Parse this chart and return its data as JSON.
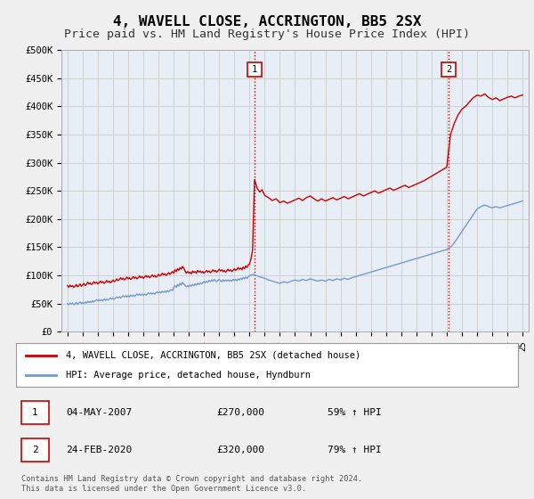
{
  "title": "4, WAVELL CLOSE, ACCRINGTON, BB5 2SX",
  "subtitle": "Price paid vs. HM Land Registry's House Price Index (HPI)",
  "title_fontsize": 11.5,
  "subtitle_fontsize": 9.5,
  "ylim": [
    0,
    500000
  ],
  "yticks": [
    0,
    50000,
    100000,
    150000,
    200000,
    250000,
    300000,
    350000,
    400000,
    450000,
    500000
  ],
  "ytick_labels": [
    "£0",
    "£50K",
    "£100K",
    "£150K",
    "£200K",
    "£250K",
    "£300K",
    "£350K",
    "£400K",
    "£450K",
    "£500K"
  ],
  "xlim_start": 1994.6,
  "xlim_end": 2025.4,
  "background_color": "#f0f0f0",
  "plot_background": "#e8eef5",
  "grid_color": "#cccccc",
  "red_line_color": "#cc0000",
  "blue_line_color": "#7799cc",
  "vline_color": "#cc0000",
  "vline1_x": 2007.35,
  "vline2_x": 2020.12,
  "marker1_label": "1",
  "marker2_label": "2",
  "marker1_y": 470000,
  "marker2_y": 470000,
  "transaction1": [
    "1",
    "04-MAY-2007",
    "£270,000",
    "59% ↑ HPI"
  ],
  "transaction2": [
    "2",
    "24-FEB-2020",
    "£320,000",
    "79% ↑ HPI"
  ],
  "legend_line1": "4, WAVELL CLOSE, ACCRINGTON, BB5 2SX (detached house)",
  "legend_line2": "HPI: Average price, detached house, Hyndburn",
  "copyright": "Contains HM Land Registry data © Crown copyright and database right 2024.\nThis data is licensed under the Open Government Licence v3.0.",
  "red_hpi_data": [
    [
      1995.0,
      82000
    ],
    [
      1995.08,
      79000
    ],
    [
      1995.17,
      83000
    ],
    [
      1995.25,
      80000
    ],
    [
      1995.33,
      82000
    ],
    [
      1995.42,
      79000
    ],
    [
      1995.5,
      81000
    ],
    [
      1995.58,
      84000
    ],
    [
      1995.67,
      80000
    ],
    [
      1995.75,
      82000
    ],
    [
      1995.83,
      85000
    ],
    [
      1995.92,
      81000
    ],
    [
      1996.0,
      83000
    ],
    [
      1996.08,
      86000
    ],
    [
      1996.17,
      82000
    ],
    [
      1996.25,
      84000
    ],
    [
      1996.33,
      88000
    ],
    [
      1996.42,
      85000
    ],
    [
      1996.5,
      87000
    ],
    [
      1996.58,
      84000
    ],
    [
      1996.67,
      86000
    ],
    [
      1996.75,
      89000
    ],
    [
      1996.83,
      86000
    ],
    [
      1996.92,
      88000
    ],
    [
      1997.0,
      85000
    ],
    [
      1997.08,
      87000
    ],
    [
      1997.17,
      90000
    ],
    [
      1997.25,
      87000
    ],
    [
      1997.33,
      89000
    ],
    [
      1997.42,
      86000
    ],
    [
      1997.5,
      88000
    ],
    [
      1997.58,
      91000
    ],
    [
      1997.67,
      88000
    ],
    [
      1997.75,
      90000
    ],
    [
      1997.83,
      87000
    ],
    [
      1997.92,
      89000
    ],
    [
      1998.0,
      92000
    ],
    [
      1998.08,
      89000
    ],
    [
      1998.17,
      91000
    ],
    [
      1998.25,
      94000
    ],
    [
      1998.33,
      91000
    ],
    [
      1998.42,
      93000
    ],
    [
      1998.5,
      96000
    ],
    [
      1998.58,
      93000
    ],
    [
      1998.67,
      95000
    ],
    [
      1998.75,
      92000
    ],
    [
      1998.83,
      94000
    ],
    [
      1998.92,
      97000
    ],
    [
      1999.0,
      94000
    ],
    [
      1999.08,
      96000
    ],
    [
      1999.17,
      93000
    ],
    [
      1999.25,
      95000
    ],
    [
      1999.33,
      98000
    ],
    [
      1999.42,
      95000
    ],
    [
      1999.5,
      97000
    ],
    [
      1999.58,
      94000
    ],
    [
      1999.67,
      96000
    ],
    [
      1999.75,
      99000
    ],
    [
      1999.83,
      96000
    ],
    [
      1999.92,
      98000
    ],
    [
      2000.0,
      95000
    ],
    [
      2000.08,
      97000
    ],
    [
      2000.17,
      100000
    ],
    [
      2000.25,
      97000
    ],
    [
      2000.33,
      99000
    ],
    [
      2000.42,
      96000
    ],
    [
      2000.5,
      98000
    ],
    [
      2000.58,
      101000
    ],
    [
      2000.67,
      98000
    ],
    [
      2000.75,
      100000
    ],
    [
      2000.83,
      97000
    ],
    [
      2000.92,
      99000
    ],
    [
      2001.0,
      102000
    ],
    [
      2001.08,
      99000
    ],
    [
      2001.17,
      101000
    ],
    [
      2001.25,
      104000
    ],
    [
      2001.33,
      101000
    ],
    [
      2001.42,
      103000
    ],
    [
      2001.5,
      100000
    ],
    [
      2001.58,
      102000
    ],
    [
      2001.67,
      105000
    ],
    [
      2001.75,
      102000
    ],
    [
      2001.83,
      104000
    ],
    [
      2001.92,
      107000
    ],
    [
      2002.0,
      104000
    ],
    [
      2002.08,
      110000
    ],
    [
      2002.17,
      107000
    ],
    [
      2002.25,
      112000
    ],
    [
      2002.33,
      109000
    ],
    [
      2002.42,
      114000
    ],
    [
      2002.5,
      111000
    ],
    [
      2002.58,
      116000
    ],
    [
      2002.67,
      113000
    ],
    [
      2002.75,
      108000
    ],
    [
      2002.83,
      104000
    ],
    [
      2002.92,
      107000
    ],
    [
      2003.0,
      104000
    ],
    [
      2003.08,
      106000
    ],
    [
      2003.17,
      103000
    ],
    [
      2003.25,
      108000
    ],
    [
      2003.33,
      105000
    ],
    [
      2003.42,
      107000
    ],
    [
      2003.5,
      104000
    ],
    [
      2003.58,
      109000
    ],
    [
      2003.67,
      106000
    ],
    [
      2003.75,
      108000
    ],
    [
      2003.83,
      105000
    ],
    [
      2003.92,
      107000
    ],
    [
      2004.0,
      104000
    ],
    [
      2004.08,
      106000
    ],
    [
      2004.17,
      109000
    ],
    [
      2004.25,
      106000
    ],
    [
      2004.33,
      108000
    ],
    [
      2004.42,
      105000
    ],
    [
      2004.5,
      107000
    ],
    [
      2004.58,
      110000
    ],
    [
      2004.67,
      107000
    ],
    [
      2004.75,
      109000
    ],
    [
      2004.83,
      106000
    ],
    [
      2004.92,
      108000
    ],
    [
      2005.0,
      111000
    ],
    [
      2005.08,
      108000
    ],
    [
      2005.17,
      110000
    ],
    [
      2005.25,
      107000
    ],
    [
      2005.33,
      109000
    ],
    [
      2005.42,
      106000
    ],
    [
      2005.5,
      108000
    ],
    [
      2005.58,
      111000
    ],
    [
      2005.67,
      108000
    ],
    [
      2005.75,
      110000
    ],
    [
      2005.83,
      107000
    ],
    [
      2005.92,
      109000
    ],
    [
      2006.0,
      112000
    ],
    [
      2006.08,
      109000
    ],
    [
      2006.17,
      111000
    ],
    [
      2006.25,
      114000
    ],
    [
      2006.33,
      111000
    ],
    [
      2006.42,
      113000
    ],
    [
      2006.5,
      110000
    ],
    [
      2006.58,
      115000
    ],
    [
      2006.67,
      112000
    ],
    [
      2006.75,
      117000
    ],
    [
      2006.83,
      114000
    ],
    [
      2006.92,
      119000
    ],
    [
      2007.0,
      120000
    ],
    [
      2007.1,
      130000
    ],
    [
      2007.2,
      145000
    ],
    [
      2007.33,
      270000
    ],
    [
      2007.5,
      255000
    ],
    [
      2007.67,
      248000
    ],
    [
      2007.83,
      252000
    ],
    [
      2008.0,
      242000
    ],
    [
      2008.25,
      238000
    ],
    [
      2008.5,
      233000
    ],
    [
      2008.75,
      236000
    ],
    [
      2009.0,
      229000
    ],
    [
      2009.25,
      232000
    ],
    [
      2009.5,
      228000
    ],
    [
      2009.75,
      231000
    ],
    [
      2010.0,
      234000
    ],
    [
      2010.25,
      237000
    ],
    [
      2010.5,
      233000
    ],
    [
      2010.75,
      238000
    ],
    [
      2011.0,
      241000
    ],
    [
      2011.25,
      236000
    ],
    [
      2011.5,
      232000
    ],
    [
      2011.75,
      236000
    ],
    [
      2012.0,
      232000
    ],
    [
      2012.25,
      235000
    ],
    [
      2012.5,
      238000
    ],
    [
      2012.75,
      234000
    ],
    [
      2013.0,
      237000
    ],
    [
      2013.25,
      240000
    ],
    [
      2013.5,
      236000
    ],
    [
      2013.75,
      239000
    ],
    [
      2014.0,
      242000
    ],
    [
      2014.25,
      245000
    ],
    [
      2014.5,
      241000
    ],
    [
      2014.75,
      244000
    ],
    [
      2015.0,
      247000
    ],
    [
      2015.25,
      250000
    ],
    [
      2015.5,
      246000
    ],
    [
      2015.75,
      249000
    ],
    [
      2016.0,
      252000
    ],
    [
      2016.25,
      255000
    ],
    [
      2016.5,
      251000
    ],
    [
      2016.75,
      254000
    ],
    [
      2017.0,
      257000
    ],
    [
      2017.25,
      260000
    ],
    [
      2017.5,
      256000
    ],
    [
      2017.75,
      259000
    ],
    [
      2018.0,
      262000
    ],
    [
      2018.25,
      265000
    ],
    [
      2018.5,
      268000
    ],
    [
      2018.75,
      272000
    ],
    [
      2019.0,
      276000
    ],
    [
      2019.25,
      280000
    ],
    [
      2019.5,
      284000
    ],
    [
      2019.75,
      288000
    ],
    [
      2020.0,
      292000
    ],
    [
      2020.12,
      320000
    ],
    [
      2020.25,
      350000
    ],
    [
      2020.5,
      370000
    ],
    [
      2020.75,
      385000
    ],
    [
      2021.0,
      395000
    ],
    [
      2021.25,
      400000
    ],
    [
      2021.5,
      408000
    ],
    [
      2021.75,
      415000
    ],
    [
      2022.0,
      420000
    ],
    [
      2022.25,
      418000
    ],
    [
      2022.5,
      422000
    ],
    [
      2022.75,
      416000
    ],
    [
      2023.0,
      412000
    ],
    [
      2023.25,
      415000
    ],
    [
      2023.5,
      410000
    ],
    [
      2023.75,
      413000
    ],
    [
      2024.0,
      416000
    ],
    [
      2024.25,
      418000
    ],
    [
      2024.5,
      415000
    ],
    [
      2024.75,
      418000
    ],
    [
      2025.0,
      420000
    ]
  ],
  "blue_hpi_data": [
    [
      1995.0,
      50000
    ],
    [
      1995.08,
      48000
    ],
    [
      1995.17,
      51000
    ],
    [
      1995.25,
      49000
    ],
    [
      1995.33,
      51000
    ],
    [
      1995.42,
      48000
    ],
    [
      1995.5,
      50000
    ],
    [
      1995.58,
      52000
    ],
    [
      1995.67,
      49000
    ],
    [
      1995.75,
      51000
    ],
    [
      1995.83,
      53000
    ],
    [
      1995.92,
      50000
    ],
    [
      1996.0,
      52000
    ],
    [
      1996.08,
      50000
    ],
    [
      1996.17,
      53000
    ],
    [
      1996.25,
      51000
    ],
    [
      1996.33,
      54000
    ],
    [
      1996.42,
      52000
    ],
    [
      1996.5,
      54000
    ],
    [
      1996.58,
      52000
    ],
    [
      1996.67,
      55000
    ],
    [
      1996.75,
      53000
    ],
    [
      1996.83,
      55000
    ],
    [
      1996.92,
      57000
    ],
    [
      1997.0,
      55000
    ],
    [
      1997.08,
      57000
    ],
    [
      1997.17,
      55000
    ],
    [
      1997.25,
      57000
    ],
    [
      1997.33,
      55000
    ],
    [
      1997.42,
      58000
    ],
    [
      1997.5,
      56000
    ],
    [
      1997.58,
      58000
    ],
    [
      1997.67,
      56000
    ],
    [
      1997.75,
      58000
    ],
    [
      1997.83,
      60000
    ],
    [
      1997.92,
      58000
    ],
    [
      1998.0,
      60000
    ],
    [
      1998.08,
      58000
    ],
    [
      1998.17,
      60000
    ],
    [
      1998.25,
      62000
    ],
    [
      1998.33,
      60000
    ],
    [
      1998.42,
      62000
    ],
    [
      1998.5,
      60000
    ],
    [
      1998.58,
      62000
    ],
    [
      1998.67,
      64000
    ],
    [
      1998.75,
      62000
    ],
    [
      1998.83,
      64000
    ],
    [
      1998.92,
      62000
    ],
    [
      1999.0,
      64000
    ],
    [
      1999.08,
      62000
    ],
    [
      1999.17,
      65000
    ],
    [
      1999.25,
      63000
    ],
    [
      1999.33,
      65000
    ],
    [
      1999.42,
      63000
    ],
    [
      1999.5,
      65000
    ],
    [
      1999.58,
      67000
    ],
    [
      1999.67,
      65000
    ],
    [
      1999.75,
      67000
    ],
    [
      1999.83,
      65000
    ],
    [
      1999.92,
      67000
    ],
    [
      2000.0,
      65000
    ],
    [
      2000.08,
      67000
    ],
    [
      2000.17,
      65000
    ],
    [
      2000.25,
      67000
    ],
    [
      2000.33,
      69000
    ],
    [
      2000.42,
      67000
    ],
    [
      2000.5,
      69000
    ],
    [
      2000.58,
      67000
    ],
    [
      2000.67,
      69000
    ],
    [
      2000.75,
      67000
    ],
    [
      2000.83,
      69000
    ],
    [
      2000.92,
      71000
    ],
    [
      2001.0,
      69000
    ],
    [
      2001.08,
      71000
    ],
    [
      2001.17,
      69000
    ],
    [
      2001.25,
      72000
    ],
    [
      2001.33,
      70000
    ],
    [
      2001.42,
      72000
    ],
    [
      2001.5,
      70000
    ],
    [
      2001.58,
      73000
    ],
    [
      2001.67,
      71000
    ],
    [
      2001.75,
      73000
    ],
    [
      2001.83,
      75000
    ],
    [
      2001.92,
      73000
    ],
    [
      2002.0,
      78000
    ],
    [
      2002.08,
      82000
    ],
    [
      2002.17,
      79000
    ],
    [
      2002.25,
      84000
    ],
    [
      2002.33,
      81000
    ],
    [
      2002.42,
      86000
    ],
    [
      2002.5,
      83000
    ],
    [
      2002.58,
      88000
    ],
    [
      2002.67,
      85000
    ],
    [
      2002.75,
      82000
    ],
    [
      2002.83,
      80000
    ],
    [
      2002.92,
      82000
    ],
    [
      2003.0,
      80000
    ],
    [
      2003.08,
      83000
    ],
    [
      2003.17,
      81000
    ],
    [
      2003.25,
      84000
    ],
    [
      2003.33,
      82000
    ],
    [
      2003.42,
      85000
    ],
    [
      2003.5,
      83000
    ],
    [
      2003.58,
      86000
    ],
    [
      2003.67,
      84000
    ],
    [
      2003.75,
      87000
    ],
    [
      2003.83,
      85000
    ],
    [
      2003.92,
      87000
    ],
    [
      2004.0,
      89000
    ],
    [
      2004.08,
      87000
    ],
    [
      2004.17,
      90000
    ],
    [
      2004.25,
      88000
    ],
    [
      2004.33,
      91000
    ],
    [
      2004.42,
      89000
    ],
    [
      2004.5,
      92000
    ],
    [
      2004.58,
      90000
    ],
    [
      2004.67,
      93000
    ],
    [
      2004.75,
      91000
    ],
    [
      2004.83,
      89000
    ],
    [
      2004.92,
      91000
    ],
    [
      2005.0,
      93000
    ],
    [
      2005.08,
      91000
    ],
    [
      2005.17,
      89000
    ],
    [
      2005.25,
      92000
    ],
    [
      2005.33,
      90000
    ],
    [
      2005.42,
      92000
    ],
    [
      2005.5,
      90000
    ],
    [
      2005.58,
      92000
    ],
    [
      2005.67,
      90000
    ],
    [
      2005.75,
      92000
    ],
    [
      2005.83,
      90000
    ],
    [
      2005.92,
      93000
    ],
    [
      2006.0,
      91000
    ],
    [
      2006.08,
      93000
    ],
    [
      2006.17,
      91000
    ],
    [
      2006.25,
      94000
    ],
    [
      2006.33,
      92000
    ],
    [
      2006.42,
      95000
    ],
    [
      2006.5,
      93000
    ],
    [
      2006.58,
      96000
    ],
    [
      2006.67,
      94000
    ],
    [
      2006.75,
      97000
    ],
    [
      2006.83,
      95000
    ],
    [
      2006.92,
      98000
    ],
    [
      2007.0,
      100000
    ],
    [
      2007.25,
      102000
    ],
    [
      2007.5,
      99000
    ],
    [
      2007.75,
      97000
    ],
    [
      2008.0,
      95000
    ],
    [
      2008.25,
      92000
    ],
    [
      2008.5,
      90000
    ],
    [
      2008.75,
      88000
    ],
    [
      2009.0,
      86000
    ],
    [
      2009.25,
      89000
    ],
    [
      2009.5,
      87000
    ],
    [
      2009.75,
      90000
    ],
    [
      2010.0,
      92000
    ],
    [
      2010.25,
      90000
    ],
    [
      2010.5,
      93000
    ],
    [
      2010.75,
      91000
    ],
    [
      2011.0,
      94000
    ],
    [
      2011.25,
      92000
    ],
    [
      2011.5,
      90000
    ],
    [
      2011.75,
      92000
    ],
    [
      2012.0,
      90000
    ],
    [
      2012.25,
      93000
    ],
    [
      2012.5,
      91000
    ],
    [
      2012.75,
      94000
    ],
    [
      2013.0,
      92000
    ],
    [
      2013.25,
      95000
    ],
    [
      2013.5,
      93000
    ],
    [
      2013.75,
      96000
    ],
    [
      2014.0,
      98000
    ],
    [
      2014.25,
      100000
    ],
    [
      2014.5,
      102000
    ],
    [
      2014.75,
      104000
    ],
    [
      2015.0,
      106000
    ],
    [
      2015.25,
      108000
    ],
    [
      2015.5,
      110000
    ],
    [
      2015.75,
      112000
    ],
    [
      2016.0,
      114000
    ],
    [
      2016.25,
      116000
    ],
    [
      2016.5,
      118000
    ],
    [
      2016.75,
      120000
    ],
    [
      2017.0,
      122000
    ],
    [
      2017.25,
      124000
    ],
    [
      2017.5,
      126000
    ],
    [
      2017.75,
      128000
    ],
    [
      2018.0,
      130000
    ],
    [
      2018.25,
      132000
    ],
    [
      2018.5,
      134000
    ],
    [
      2018.75,
      136000
    ],
    [
      2019.0,
      138000
    ],
    [
      2019.25,
      140000
    ],
    [
      2019.5,
      142000
    ],
    [
      2019.75,
      144000
    ],
    [
      2020.0,
      146000
    ],
    [
      2020.25,
      150000
    ],
    [
      2020.5,
      158000
    ],
    [
      2020.75,
      168000
    ],
    [
      2021.0,
      178000
    ],
    [
      2021.25,
      188000
    ],
    [
      2021.5,
      198000
    ],
    [
      2021.75,
      208000
    ],
    [
      2022.0,
      218000
    ],
    [
      2022.25,
      222000
    ],
    [
      2022.5,
      225000
    ],
    [
      2022.75,
      222000
    ],
    [
      2023.0,
      220000
    ],
    [
      2023.25,
      222000
    ],
    [
      2023.5,
      220000
    ],
    [
      2023.75,
      222000
    ],
    [
      2024.0,
      224000
    ],
    [
      2024.25,
      226000
    ],
    [
      2024.5,
      228000
    ],
    [
      2024.75,
      230000
    ],
    [
      2025.0,
      232000
    ]
  ]
}
